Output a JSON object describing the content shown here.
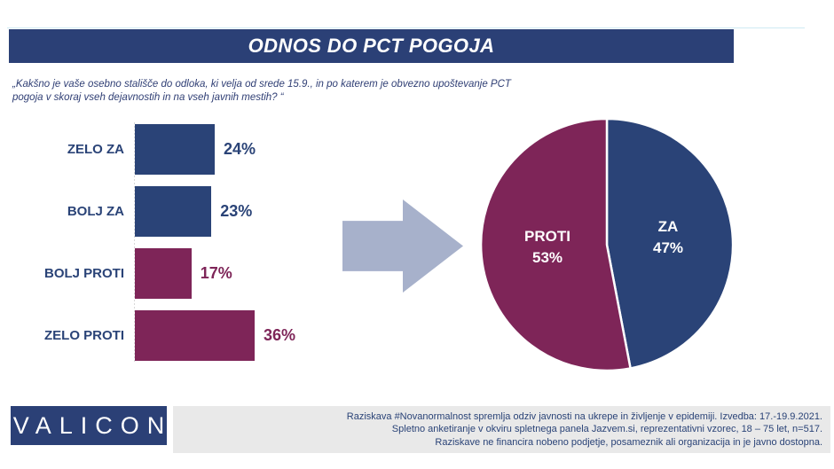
{
  "page": {
    "title": "ODNOS DO PCT POGOJA",
    "question": "„Kakšno je vaše osebno stališče do odloka, ki velja od srede 15.9., in po katerem je obvezno upoštevanje PCT pogoja v skoraj vseh dejavnostih in na vseh javnih mestih? “"
  },
  "colors": {
    "navy": "#2a4377",
    "maroon": "#7e2558",
    "banner": "#2b4076",
    "arrow": "#a7b1cb",
    "footer_bg": "#e9e9e9"
  },
  "chart_data": [
    {
      "type": "bar",
      "orientation": "horizontal",
      "categories": [
        "ZELO ZA",
        "BOLJ ZA",
        "BOLJ PROTI",
        "ZELO PROTI"
      ],
      "values": [
        24,
        23,
        17,
        36
      ],
      "unit": "%",
      "bar_colors": [
        "#2a4377",
        "#2a4377",
        "#7e2558",
        "#7e2558"
      ],
      "xlim": [
        0,
        40
      ],
      "grid": false,
      "value_labels": [
        "24%",
        "23%",
        "17%",
        "36%"
      ]
    },
    {
      "type": "pie",
      "labels": [
        "ZA",
        "PROTI"
      ],
      "values": [
        47,
        53
      ],
      "slice_colors": [
        "#2a4377",
        "#7e2558"
      ],
      "value_labels": [
        "47%",
        "53%"
      ],
      "start_angle_deg": 0,
      "direction": "clockwise",
      "separator_color": "#ffffff"
    }
  ],
  "footer": {
    "logo": "VALICON",
    "lines": [
      "Raziskava #Novanormalnost spremlja odziv javnosti na ukrepe in življenje v epidemiji. Izvedba: 17.-19.9.2021.",
      "Spletno anketiranje v okviru spletnega panela Jazvem.si, reprezentativni vzorec, 18 – 75 let, n=517.",
      "Raziskave ne financira nobeno podjetje, posameznik ali organizacija in je javno dostopna."
    ]
  }
}
